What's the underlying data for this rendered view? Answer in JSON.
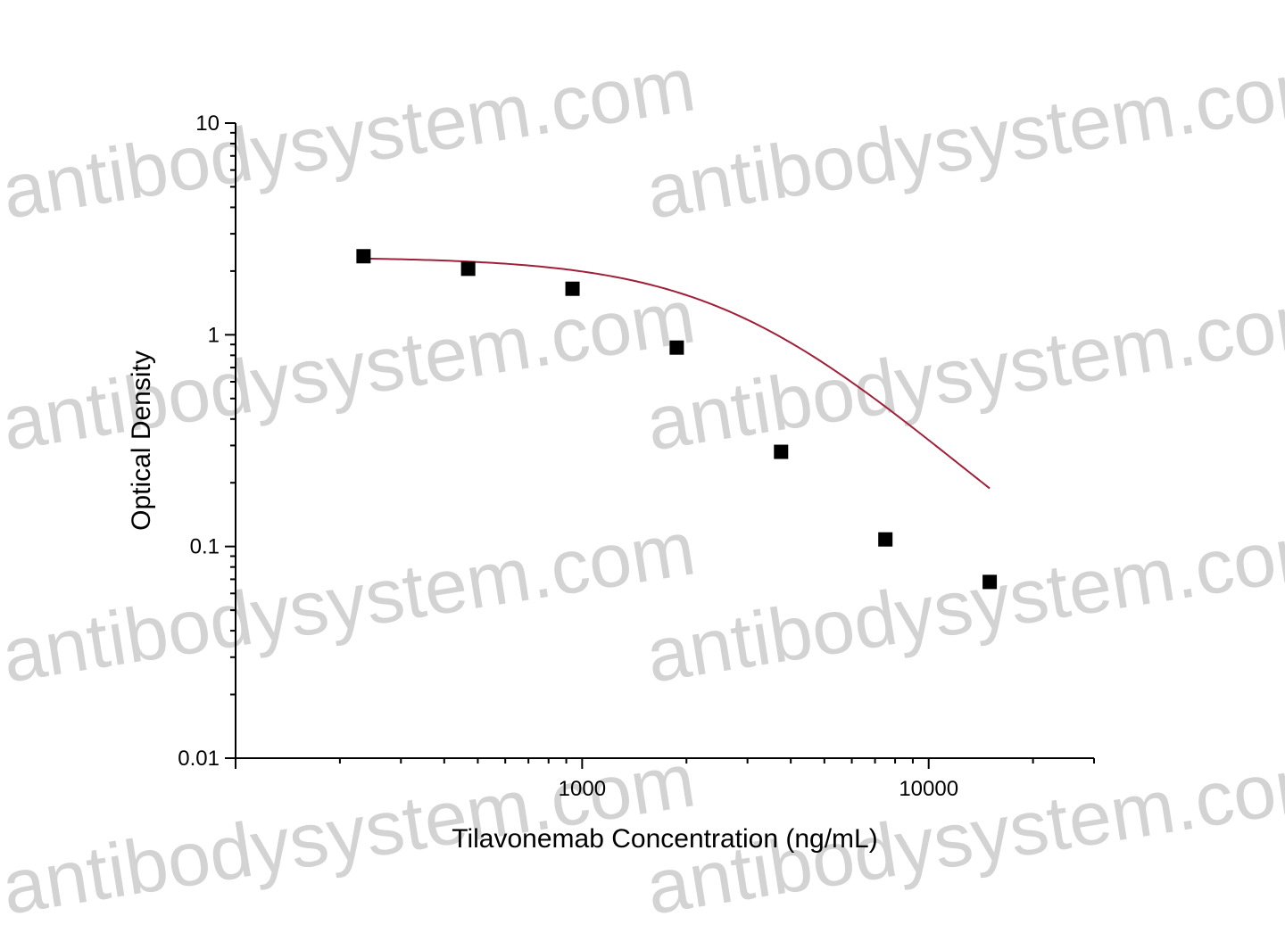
{
  "watermark": {
    "text": "antibodysystem.com",
    "color": "#d3d3d3"
  },
  "chart_data": {
    "type": "scatter",
    "title": "",
    "xlabel": "Tilavonemab Concentration (ng/mL)",
    "ylabel": "Optical Density",
    "x_scale": "log",
    "y_scale": "log",
    "xlim": [
      100,
      30000
    ],
    "ylim": [
      0.01,
      10
    ],
    "x_ticks": [
      {
        "value": 1000,
        "label": "1000"
      },
      {
        "value": 10000,
        "label": "10000"
      }
    ],
    "y_ticks": [
      {
        "value": 10,
        "label": "10"
      },
      {
        "value": 1,
        "label": "1"
      },
      {
        "value": 0.1,
        "label": "0.1"
      },
      {
        "value": 0.01,
        "label": "0.01"
      }
    ],
    "grid": false,
    "legend": "none",
    "series": [
      {
        "marker": "square",
        "color": "#000000",
        "points": [
          {
            "x": 234,
            "y": 2.35
          },
          {
            "x": 469,
            "y": 2.05
          },
          {
            "x": 938,
            "y": 1.65
          },
          {
            "x": 1875,
            "y": 0.87
          },
          {
            "x": 3750,
            "y": 0.28
          },
          {
            "x": 7500,
            "y": 0.108
          },
          {
            "x": 15000,
            "y": 0.068
          }
        ]
      }
    ],
    "fit": {
      "type": "4PL",
      "color": "#a0203a",
      "top": 2.33,
      "bottom": 0.025,
      "ec50": 3000,
      "hill": 1.6,
      "x_range": [
        234,
        15000
      ]
    }
  }
}
